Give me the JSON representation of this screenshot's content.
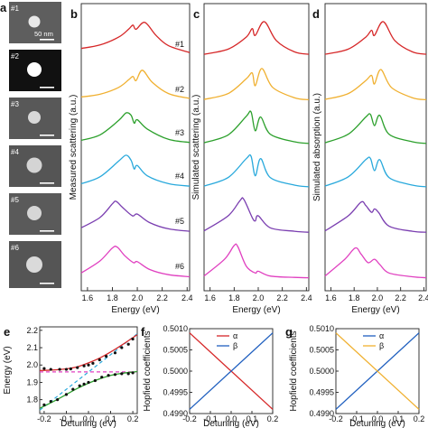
{
  "colors": {
    "red": "#d62728",
    "orange": "#f0b030",
    "green": "#2ca02c",
    "cyan": "#29a9dc",
    "purple": "#7a3eb0",
    "magenta": "#e040c0",
    "blue": "#1f5fbf"
  },
  "panel_labels": [
    "a",
    "b",
    "c",
    "d",
    "e",
    "f",
    "g"
  ],
  "micrographs": {
    "labels": [
      "#1",
      "#2",
      "#3",
      "#4",
      "#5",
      "#6"
    ],
    "scale_text": "50 nm"
  },
  "chart_data": [
    {
      "type": "line",
      "panel": "b",
      "ylabel": "Measured scattering (a.u.)",
      "xlabel": "Energy (eV)",
      "xlim": [
        1.55,
        2.42
      ],
      "xticks": [
        "1.6",
        "1.8",
        "2.0",
        "2.2",
        "2.4"
      ],
      "series": [
        {
          "name": "#1",
          "values": [
            [
              1.55,
              0.22
            ],
            [
              1.7,
              0.32
            ],
            [
              1.85,
              0.55
            ],
            [
              1.93,
              0.78
            ],
            [
              1.965,
              0.9
            ],
            [
              1.99,
              0.78
            ],
            [
              2.06,
              0.98
            ],
            [
              2.15,
              0.6
            ],
            [
              2.25,
              0.3
            ],
            [
              2.42,
              0.1
            ]
          ]
        },
        {
          "name": "#2",
          "values": [
            [
              1.55,
              0.12
            ],
            [
              1.7,
              0.2
            ],
            [
              1.85,
              0.4
            ],
            [
              1.93,
              0.62
            ],
            [
              1.965,
              0.72
            ],
            [
              1.99,
              0.6
            ],
            [
              2.04,
              0.9
            ],
            [
              2.12,
              0.55
            ],
            [
              2.25,
              0.22
            ],
            [
              2.42,
              0.08
            ]
          ]
        },
        {
          "name": "#3",
          "values": [
            [
              1.55,
              0.12
            ],
            [
              1.7,
              0.28
            ],
            [
              1.85,
              0.7
            ],
            [
              1.91,
              0.92
            ],
            [
              1.95,
              0.85
            ],
            [
              1.975,
              0.62
            ],
            [
              2.0,
              0.72
            ],
            [
              2.08,
              0.45
            ],
            [
              2.25,
              0.15
            ],
            [
              2.42,
              0.06
            ]
          ]
        },
        {
          "name": "#4",
          "values": [
            [
              1.55,
              0.12
            ],
            [
              1.7,
              0.32
            ],
            [
              1.85,
              0.78
            ],
            [
              1.91,
              0.95
            ],
            [
              1.95,
              0.8
            ],
            [
              1.975,
              0.55
            ],
            [
              2.0,
              0.65
            ],
            [
              2.08,
              0.35
            ],
            [
              2.25,
              0.12
            ],
            [
              2.42,
              0.05
            ]
          ]
        },
        {
          "name": "#5",
          "values": [
            [
              1.55,
              0.15
            ],
            [
              1.7,
              0.45
            ],
            [
              1.8,
              0.85
            ],
            [
              1.83,
              0.92
            ],
            [
              1.88,
              0.75
            ],
            [
              1.96,
              0.5
            ],
            [
              2.0,
              0.55
            ],
            [
              2.1,
              0.3
            ],
            [
              2.25,
              0.12
            ],
            [
              2.42,
              0.05
            ]
          ]
        },
        {
          "name": "#6",
          "values": [
            [
              1.55,
              0.15
            ],
            [
              1.7,
              0.5
            ],
            [
              1.8,
              0.88
            ],
            [
              1.84,
              0.9
            ],
            [
              1.9,
              0.65
            ],
            [
              1.97,
              0.45
            ],
            [
              2.0,
              0.48
            ],
            [
              2.1,
              0.25
            ],
            [
              2.25,
              0.1
            ],
            [
              2.42,
              0.04
            ]
          ]
        }
      ]
    },
    {
      "type": "line",
      "panel": "c",
      "ylabel": "Simulated scattering (a.u.)",
      "xlabel": "Energy (eV)",
      "xlim": [
        1.55,
        2.42
      ],
      "xticks": [
        "1.6",
        "1.8",
        "2.0",
        "2.2",
        "2.4"
      ],
      "series": [
        {
          "name": "#1",
          "values": [
            [
              1.55,
              0.05
            ],
            [
              1.75,
              0.2
            ],
            [
              1.9,
              0.55
            ],
            [
              1.95,
              0.8
            ],
            [
              1.975,
              0.6
            ],
            [
              2.05,
              1.0
            ],
            [
              2.15,
              0.45
            ],
            [
              2.3,
              0.12
            ],
            [
              2.42,
              0.05
            ]
          ]
        },
        {
          "name": "#2",
          "values": [
            [
              1.55,
              0.05
            ],
            [
              1.75,
              0.22
            ],
            [
              1.9,
              0.65
            ],
            [
              1.95,
              0.82
            ],
            [
              1.975,
              0.45
            ],
            [
              2.03,
              0.95
            ],
            [
              2.12,
              0.4
            ],
            [
              2.3,
              0.1
            ],
            [
              2.42,
              0.04
            ]
          ]
        },
        {
          "name": "#3",
          "values": [
            [
              1.55,
              0.05
            ],
            [
              1.75,
              0.28
            ],
            [
              1.9,
              0.82
            ],
            [
              1.94,
              0.95
            ],
            [
              1.975,
              0.4
            ],
            [
              2.02,
              0.8
            ],
            [
              2.1,
              0.3
            ],
            [
              2.3,
              0.08
            ],
            [
              2.42,
              0.03
            ]
          ]
        },
        {
          "name": "#4",
          "values": [
            [
              1.55,
              0.05
            ],
            [
              1.75,
              0.3
            ],
            [
              1.9,
              0.85
            ],
            [
              1.94,
              0.92
            ],
            [
              1.975,
              0.35
            ],
            [
              2.02,
              0.85
            ],
            [
              2.1,
              0.3
            ],
            [
              2.3,
              0.08
            ],
            [
              2.42,
              0.03
            ]
          ]
        },
        {
          "name": "#5",
          "values": [
            [
              1.55,
              0.06
            ],
            [
              1.75,
              0.5
            ],
            [
              1.85,
              0.95
            ],
            [
              1.88,
              0.98
            ],
            [
              1.95,
              0.45
            ],
            [
              1.975,
              0.35
            ],
            [
              2.0,
              0.5
            ],
            [
              2.1,
              0.15
            ],
            [
              2.3,
              0.05
            ],
            [
              2.42,
              0.02
            ]
          ]
        },
        {
          "name": "#6",
          "values": [
            [
              1.55,
              0.06
            ],
            [
              1.72,
              0.55
            ],
            [
              1.8,
              0.95
            ],
            [
              1.83,
              0.92
            ],
            [
              1.9,
              0.35
            ],
            [
              1.975,
              0.15
            ],
            [
              2.0,
              0.2
            ],
            [
              2.1,
              0.06
            ],
            [
              2.3,
              0.02
            ],
            [
              2.42,
              0.01
            ]
          ]
        }
      ]
    },
    {
      "type": "line",
      "panel": "d",
      "ylabel": "Simulated absorption (a.u.)",
      "xlabel": "Energy (eV)",
      "xlim": [
        1.55,
        2.42
      ],
      "xticks": [
        "1.6",
        "1.8",
        "2.0",
        "2.2",
        "2.4"
      ],
      "series": [
        {
          "name": "#1",
          "values": [
            [
              1.55,
              0.05
            ],
            [
              1.75,
              0.2
            ],
            [
              1.9,
              0.55
            ],
            [
              1.95,
              0.75
            ],
            [
              1.975,
              0.6
            ],
            [
              2.05,
              1.0
            ],
            [
              2.15,
              0.45
            ],
            [
              2.3,
              0.12
            ],
            [
              2.42,
              0.05
            ]
          ]
        },
        {
          "name": "#2",
          "values": [
            [
              1.55,
              0.05
            ],
            [
              1.75,
              0.22
            ],
            [
              1.9,
              0.6
            ],
            [
              1.95,
              0.75
            ],
            [
              1.975,
              0.5
            ],
            [
              2.03,
              0.92
            ],
            [
              2.12,
              0.4
            ],
            [
              2.3,
              0.1
            ],
            [
              2.42,
              0.04
            ]
          ]
        },
        {
          "name": "#3",
          "values": [
            [
              1.55,
              0.05
            ],
            [
              1.75,
              0.3
            ],
            [
              1.9,
              0.8
            ],
            [
              1.94,
              0.88
            ],
            [
              1.975,
              0.55
            ],
            [
              2.02,
              0.85
            ],
            [
              2.1,
              0.3
            ],
            [
              2.3,
              0.08
            ],
            [
              2.42,
              0.03
            ]
          ]
        },
        {
          "name": "#4",
          "values": [
            [
              1.55,
              0.05
            ],
            [
              1.75,
              0.32
            ],
            [
              1.9,
              0.82
            ],
            [
              1.94,
              0.86
            ],
            [
              1.975,
              0.5
            ],
            [
              2.02,
              0.82
            ],
            [
              2.1,
              0.3
            ],
            [
              2.3,
              0.08
            ],
            [
              2.42,
              0.03
            ]
          ]
        },
        {
          "name": "#5",
          "values": [
            [
              1.55,
              0.06
            ],
            [
              1.75,
              0.5
            ],
            [
              1.86,
              0.9
            ],
            [
              1.9,
              0.8
            ],
            [
              1.95,
              0.6
            ],
            [
              1.975,
              0.7
            ],
            [
              2.01,
              0.6
            ],
            [
              2.1,
              0.2
            ],
            [
              2.3,
              0.05
            ],
            [
              2.42,
              0.02
            ]
          ]
        },
        {
          "name": "#6",
          "values": [
            [
              1.55,
              0.06
            ],
            [
              1.72,
              0.55
            ],
            [
              1.81,
              0.88
            ],
            [
              1.86,
              0.7
            ],
            [
              1.92,
              0.45
            ],
            [
              1.975,
              0.55
            ],
            [
              2.02,
              0.4
            ],
            [
              2.1,
              0.15
            ],
            [
              2.3,
              0.04
            ],
            [
              2.42,
              0.01
            ]
          ]
        }
      ]
    },
    {
      "type": "scatter",
      "panel": "e",
      "xlabel": "Detuning (eV)",
      "ylabel": "Energy (eV)",
      "xlim": [
        -0.22,
        0.22
      ],
      "ylim": [
        1.72,
        2.22
      ],
      "xticks": [
        "-0.2",
        "-0.1",
        "0.0",
        "0.1",
        "0.2"
      ],
      "yticks": [
        "1.8",
        "1.9",
        "2.0",
        "2.1",
        "2.2"
      ],
      "upper_points": [
        [
          -0.2,
          1.98
        ],
        [
          -0.17,
          1.975
        ],
        [
          -0.13,
          1.975
        ],
        [
          -0.1,
          1.975
        ],
        [
          -0.08,
          1.978
        ],
        [
          -0.05,
          1.985
        ],
        [
          -0.02,
          1.995
        ],
        [
          0.0,
          2.0
        ],
        [
          0.02,
          2.01
        ],
        [
          0.05,
          2.03
        ],
        [
          0.08,
          2.05
        ],
        [
          0.12,
          2.07
        ],
        [
          0.15,
          2.1
        ],
        [
          0.18,
          2.12
        ],
        [
          0.2,
          2.15
        ]
      ],
      "lower_points": [
        [
          -0.2,
          1.77
        ],
        [
          -0.17,
          1.79
        ],
        [
          -0.14,
          1.8
        ],
        [
          -0.1,
          1.83
        ],
        [
          -0.07,
          1.86
        ],
        [
          -0.04,
          1.88
        ],
        [
          -0.02,
          1.89
        ],
        [
          0.0,
          1.9
        ],
        [
          0.03,
          1.91
        ],
        [
          0.06,
          1.93
        ],
        [
          0.09,
          1.94
        ],
        [
          0.12,
          1.945
        ],
        [
          0.15,
          1.95
        ],
        [
          0.18,
          1.95
        ],
        [
          0.2,
          1.955
        ]
      ],
      "upper_fit": [
        [
          -0.22,
          1.968
        ],
        [
          -0.15,
          1.972
        ],
        [
          -0.1,
          1.978
        ],
        [
          -0.05,
          1.99
        ],
        [
          0.0,
          2.012
        ],
        [
          0.05,
          2.04
        ],
        [
          0.1,
          2.075
        ],
        [
          0.15,
          2.115
        ],
        [
          0.22,
          2.175
        ]
      ],
      "lower_fit": [
        [
          -0.22,
          1.75
        ],
        [
          -0.15,
          1.795
        ],
        [
          -0.1,
          1.83
        ],
        [
          -0.05,
          1.865
        ],
        [
          0.0,
          1.895
        ],
        [
          0.05,
          1.92
        ],
        [
          0.1,
          1.94
        ],
        [
          0.15,
          1.952
        ],
        [
          0.22,
          1.962
        ]
      ],
      "plasmon_line": [
        [
          -0.22,
          1.74
        ],
        [
          0.22,
          2.18
        ]
      ],
      "exciton_line": [
        [
          -0.22,
          1.96
        ],
        [
          0.22,
          1.96
        ]
      ]
    },
    {
      "type": "line",
      "panel": "f",
      "xlabel": "Detuning (eV)",
      "ylabel": "Hopfield coefficients",
      "xlim": [
        -0.2,
        0.2
      ],
      "ylim": [
        0.499,
        0.501
      ],
      "xticks": [
        "-0.2",
        "-0.1",
        "0.0",
        "0.1",
        "0.2"
      ],
      "yticks": [
        "0.4990",
        "0.4995",
        "0.5000",
        "0.5005",
        "0.5010"
      ],
      "legend_position": "top",
      "series": [
        {
          "name": "α",
          "values": [
            [
              -0.2,
              0.5009
            ],
            [
              0.2,
              0.4991
            ]
          ]
        },
        {
          "name": "β",
          "values": [
            [
              -0.2,
              0.4991
            ],
            [
              0.2,
              0.5009
            ]
          ]
        }
      ]
    },
    {
      "type": "line",
      "panel": "g",
      "xlabel": "Detuning (eV)",
      "ylabel": "Hopfield coefficients",
      "xlim": [
        -0.2,
        0.2
      ],
      "ylim": [
        0.499,
        0.501
      ],
      "xticks": [
        "-0.2",
        "-0.1",
        "0.0",
        "0.1",
        "0.2"
      ],
      "yticks": [
        "0.4990",
        "0.4995",
        "0.5000",
        "0.5005",
        "0.5010"
      ],
      "legend_position": "top",
      "series": [
        {
          "name": "α",
          "values": [
            [
              -0.2,
              0.4991
            ],
            [
              0.2,
              0.5009
            ]
          ]
        },
        {
          "name": "β",
          "values": [
            [
              -0.2,
              0.5009
            ],
            [
              0.2,
              0.4991
            ]
          ]
        }
      ]
    }
  ]
}
